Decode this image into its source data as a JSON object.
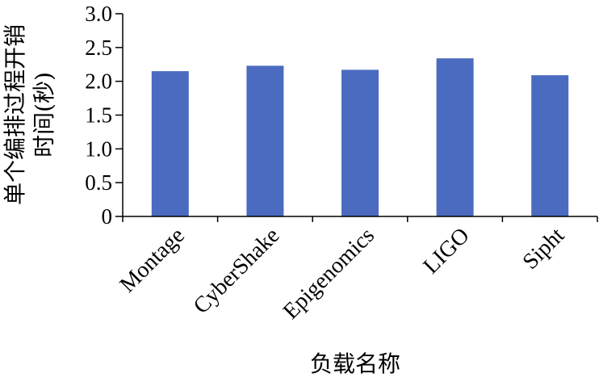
{
  "chart_data": {
    "type": "bar",
    "categories": [
      "Montage",
      "CyberShake",
      "Epigenomics",
      "LIGO",
      "Sipht"
    ],
    "values": [
      2.15,
      2.23,
      2.17,
      2.34,
      2.09
    ],
    "ylabel": [
      "单个编排过程开销",
      "时间(秒)"
    ],
    "xlabel": "负载名称",
    "ylim": [
      0,
      3.0
    ],
    "yticks": [
      0,
      0.5,
      1.0,
      1.5,
      2.0,
      2.5,
      3.0
    ],
    "ytick_labels": [
      "0",
      "0.5",
      "1.0",
      "1.5",
      "2.0",
      "2.5",
      "3.0"
    ],
    "bar_color": "#4a6bbf",
    "grid": false,
    "legend": "none"
  }
}
